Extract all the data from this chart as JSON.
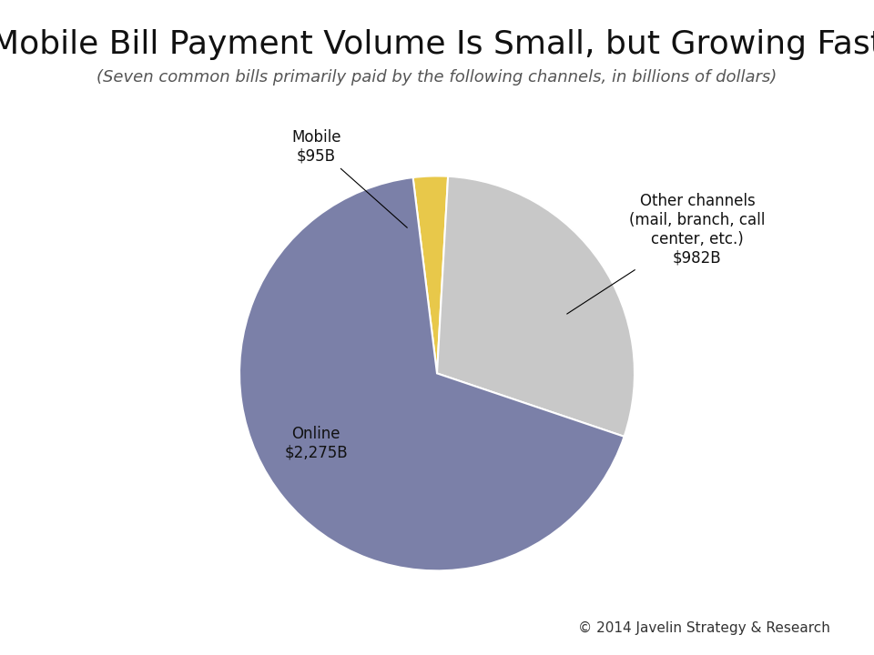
{
  "title": "Mobile Bill Payment Volume Is Small, but Growing Fast",
  "subtitle": "(Seven common bills primarily paid by the following channels, in billions of dollars)",
  "slices": [
    95,
    982,
    2275
  ],
  "labels": [
    "Mobile",
    "Other channels",
    "Online"
  ],
  "values_labels": [
    "$95B",
    "$982B",
    "$2,275B"
  ],
  "colors": [
    "#E8C84A",
    "#C8C8C8",
    "#7B80A8"
  ],
  "annotation_mobile": "Mobile\n$95B",
  "annotation_other": "Other channels\n(mail, branch, call\ncenter, etc.)\n$982B",
  "annotation_online": "Online\n$2,275B",
  "copyright": "© 2014 Javelin Strategy & Research",
  "background_color": "#FFFFFF",
  "title_fontsize": 26,
  "subtitle_fontsize": 13,
  "label_fontsize": 12,
  "copyright_fontsize": 11
}
